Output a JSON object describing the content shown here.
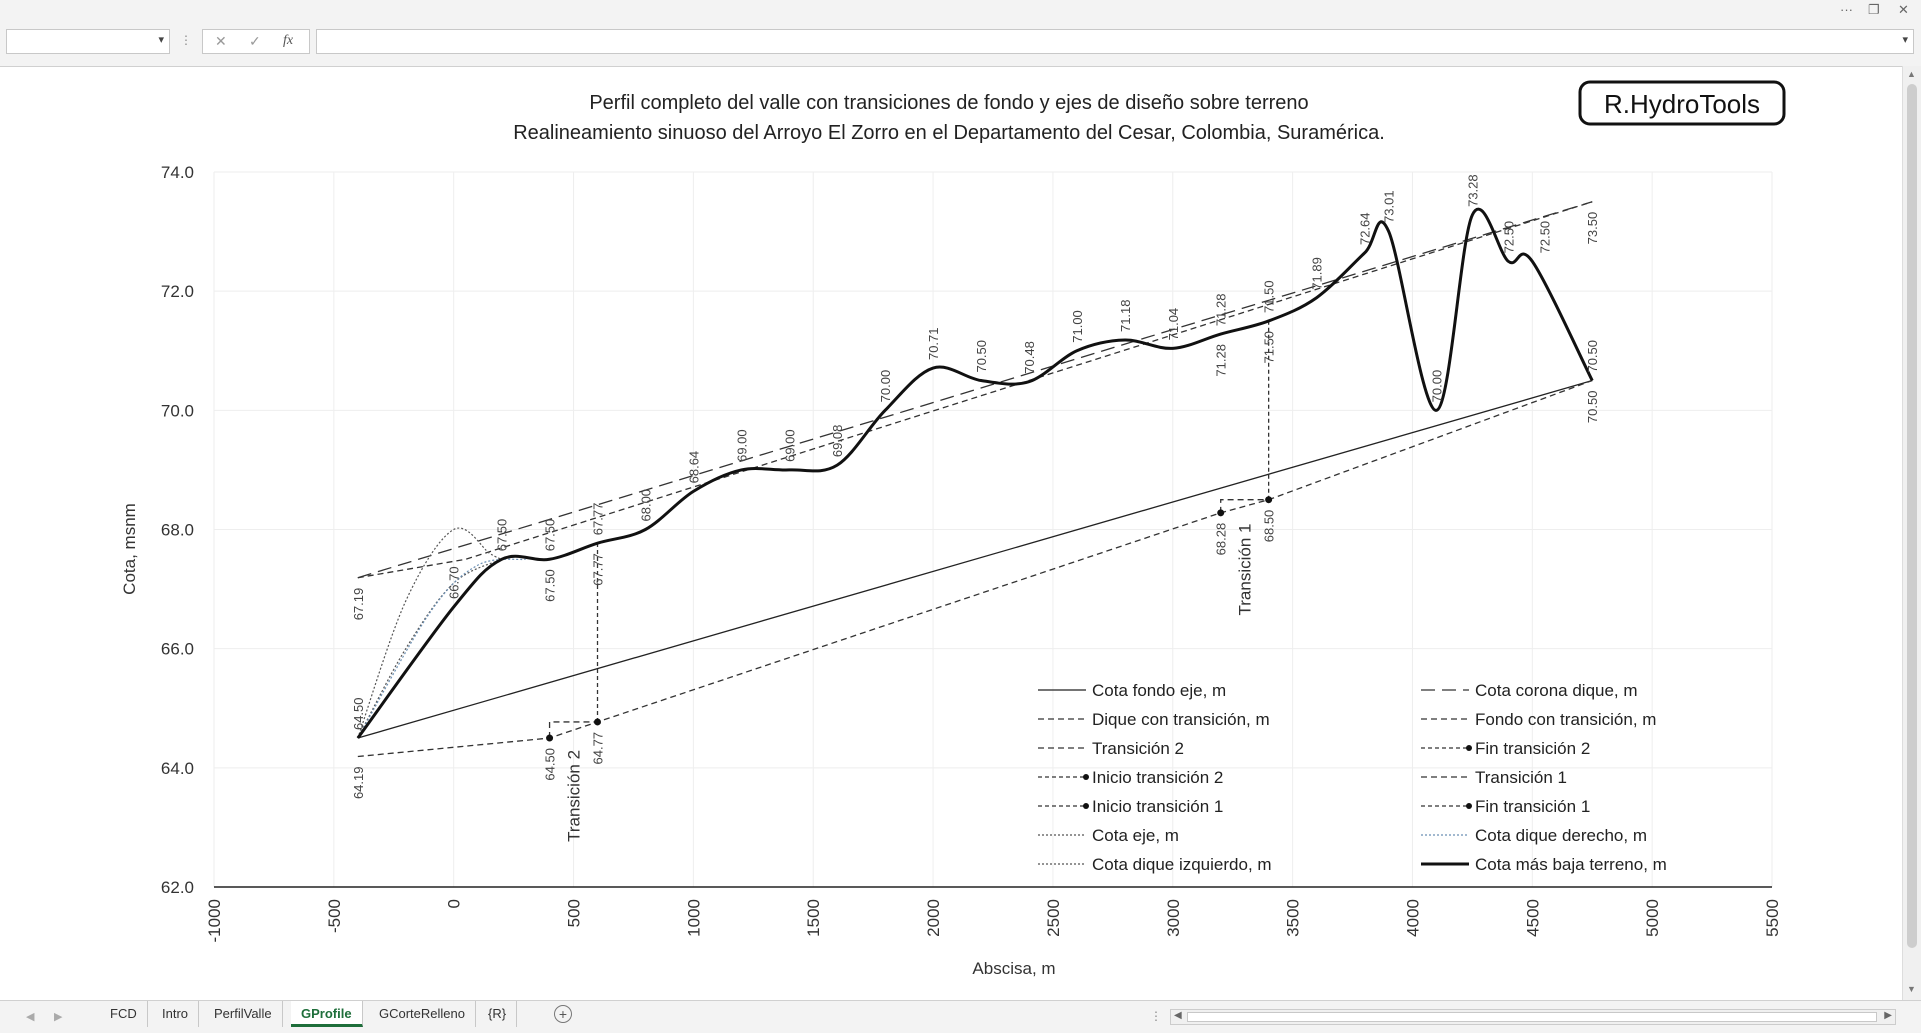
{
  "window": {
    "more_label": "···",
    "restore_label": "❐",
    "close_label": "✕"
  },
  "formula_bar": {
    "namebox_value": "",
    "cancel_icon": "✕",
    "enter_icon": "✓",
    "fx_label": "fx",
    "formula_value": ""
  },
  "sheet_tabs": [
    {
      "label": "FCD",
      "active": false
    },
    {
      "label": "Intro",
      "active": false
    },
    {
      "label": "PerfilValle",
      "active": false
    },
    {
      "label": "GProfile",
      "active": true
    },
    {
      "label": "GCorteRelleno",
      "active": false
    },
    {
      "label": "{R}",
      "active": false
    }
  ],
  "logo_text": "R.HydroTools",
  "chart_data": {
    "type": "line",
    "title": "Perfil completo del valle con transiciones de fondo y ejes de diseño sobre terreno",
    "subtitle": "Realineamiento sinuoso del Arroyo El Zorro en el Departamento del Cesar, Colombia, Suramérica.",
    "xlabel": "Abscisa, m",
    "ylabel": "Cota, msnm",
    "xlim": [
      -1000,
      5500
    ],
    "ylim": [
      62.0,
      74.0
    ],
    "x_ticks": [
      "-1000",
      "-500",
      "0",
      "500",
      "1000",
      "1500",
      "2000",
      "2500",
      "3000",
      "3500",
      "4000",
      "4500",
      "5000",
      "5500"
    ],
    "y_ticks": [
      "62.0",
      "64.0",
      "66.0",
      "68.0",
      "70.0",
      "72.0",
      "74.0"
    ],
    "grid": true,
    "legend_position": "bottom-right",
    "series": [
      {
        "name": "Cota fondo eje, m",
        "style": "solid-thin",
        "x": [
          -400,
          4750
        ],
        "y": [
          64.5,
          70.5
        ]
      },
      {
        "name": "Cota corona dique, m",
        "style": "long-dash",
        "x": [
          -400,
          4750
        ],
        "y": [
          67.19,
          73.5
        ]
      },
      {
        "name": "Dique con transición, m",
        "style": "dash",
        "x": [
          -400,
          50,
          4750
        ],
        "y": [
          67.19,
          67.5,
          73.5
        ]
      },
      {
        "name": "Fondo con transición, m",
        "style": "dash",
        "x": [
          -400,
          400,
          600,
          3200,
          3400,
          4750
        ],
        "y": [
          64.19,
          64.5,
          64.77,
          68.28,
          68.5,
          70.5
        ]
      },
      {
        "name": "Transición 2",
        "style": "dash",
        "x": [
          400,
          400,
          600
        ],
        "y": [
          64.5,
          64.77,
          64.77
        ]
      },
      {
        "name": "Fin transición 2",
        "style": "dash-marker",
        "x": [
          600,
          600
        ],
        "y": [
          64.77,
          67.77
        ]
      },
      {
        "name": "Inicio transición 2",
        "style": "dash-marker",
        "x": [
          400
        ],
        "y": [
          64.5
        ]
      },
      {
        "name": "Transición 1",
        "style": "dash",
        "x": [
          3200,
          3200,
          3400
        ],
        "y": [
          68.28,
          68.5,
          68.5
        ]
      },
      {
        "name": "Inicio transición 1",
        "style": "dash-marker",
        "x": [
          3200
        ],
        "y": [
          68.28
        ]
      },
      {
        "name": "Fin transición 1",
        "style": "dash-marker",
        "x": [
          3400,
          3400
        ],
        "y": [
          68.5,
          71.5
        ]
      },
      {
        "name": "Cota eje, m",
        "style": "dot",
        "x": [
          -400,
          -200,
          0,
          200
        ],
        "y": [
          64.5,
          66.0,
          67.1,
          67.5
        ]
      },
      {
        "name": "Cota dique derecho, m",
        "style": "dot-blue",
        "x": [
          -400,
          -100,
          100,
          300
        ],
        "y": [
          64.5,
          66.6,
          67.4,
          67.5
        ]
      },
      {
        "name": "Cota dique izquierdo, m",
        "style": "dot",
        "x": [
          -400,
          -200,
          0,
          150,
          200
        ],
        "y": [
          64.5,
          66.8,
          68.0,
          67.6,
          67.5
        ]
      },
      {
        "name": "Cota más baja terreno, m",
        "style": "solid-thick",
        "x": [
          -400,
          0,
          200,
          400,
          600,
          800,
          1000,
          1200,
          1400,
          1600,
          1800,
          2000,
          2200,
          2400,
          2600,
          2800,
          3000,
          3200,
          3400,
          3600,
          3800,
          3900,
          4100,
          4250,
          4400,
          4500,
          4750
        ],
        "y": [
          64.5,
          66.7,
          67.5,
          67.5,
          67.77,
          68.0,
          68.64,
          69.0,
          69.0,
          69.08,
          70.0,
          70.71,
          70.5,
          70.48,
          71.0,
          71.18,
          71.04,
          71.28,
          71.5,
          71.89,
          72.64,
          73.01,
          70.0,
          73.28,
          72.5,
          72.5,
          70.5
        ]
      }
    ],
    "data_labels": [
      {
        "x": -400,
        "y": 67.19,
        "text": "67.19",
        "pos": "below"
      },
      {
        "x": -400,
        "y": 64.5,
        "text": "64.50",
        "pos": "above"
      },
      {
        "x": -400,
        "y": 64.19,
        "text": "64.19",
        "pos": "below"
      },
      {
        "x": 0,
        "y": 66.7,
        "text": "66.70",
        "pos": "above"
      },
      {
        "x": 200,
        "y": 67.5,
        "text": "67.50",
        "pos": "above"
      },
      {
        "x": 400,
        "y": 67.5,
        "text": "67.50",
        "pos": "above"
      },
      {
        "x": 400,
        "y": 67.5,
        "text": "67.50",
        "pos": "below"
      },
      {
        "x": 600,
        "y": 67.77,
        "text": "67.77",
        "pos": "above"
      },
      {
        "x": 600,
        "y": 67.77,
        "text": "67.77",
        "pos": "below"
      },
      {
        "x": 800,
        "y": 68.0,
        "text": "68.00",
        "pos": "above"
      },
      {
        "x": 1000,
        "y": 68.64,
        "text": "68.64",
        "pos": "above"
      },
      {
        "x": 1200,
        "y": 69.0,
        "text": "69.00",
        "pos": "above"
      },
      {
        "x": 1400,
        "y": 69.0,
        "text": "69.00",
        "pos": "above"
      },
      {
        "x": 1600,
        "y": 69.08,
        "text": "69.08",
        "pos": "above"
      },
      {
        "x": 1800,
        "y": 70.0,
        "text": "70.00",
        "pos": "above"
      },
      {
        "x": 2000,
        "y": 70.71,
        "text": "70.71",
        "pos": "above"
      },
      {
        "x": 2200,
        "y": 70.5,
        "text": "70.50",
        "pos": "above"
      },
      {
        "x": 2400,
        "y": 70.48,
        "text": "70.48",
        "pos": "above"
      },
      {
        "x": 2600,
        "y": 71.0,
        "text": "71.00",
        "pos": "above"
      },
      {
        "x": 2800,
        "y": 71.18,
        "text": "71.18",
        "pos": "above"
      },
      {
        "x": 3000,
        "y": 71.04,
        "text": "71.04",
        "pos": "above"
      },
      {
        "x": 3200,
        "y": 71.28,
        "text": "71.28",
        "pos": "above"
      },
      {
        "x": 3200,
        "y": 71.28,
        "text": "71.28",
        "pos": "below"
      },
      {
        "x": 3400,
        "y": 71.5,
        "text": "71.50",
        "pos": "above"
      },
      {
        "x": 3400,
        "y": 71.5,
        "text": "71.50",
        "pos": "below"
      },
      {
        "x": 3600,
        "y": 71.89,
        "text": "71.89",
        "pos": "above"
      },
      {
        "x": 3800,
        "y": 72.64,
        "text": "72.64",
        "pos": "above"
      },
      {
        "x": 3900,
        "y": 73.01,
        "text": "73.01",
        "pos": "above"
      },
      {
        "x": 4100,
        "y": 70.0,
        "text": "70.00",
        "pos": "above"
      },
      {
        "x": 4250,
        "y": 73.28,
        "text": "73.28",
        "pos": "above"
      },
      {
        "x": 4400,
        "y": 72.5,
        "text": "72.50",
        "pos": "above"
      },
      {
        "x": 4550,
        "y": 72.5,
        "text": "72.50",
        "pos": "above"
      },
      {
        "x": 4750,
        "y": 73.5,
        "text": "73.50",
        "pos": "below"
      },
      {
        "x": 4750,
        "y": 70.5,
        "text": "70.50",
        "pos": "above"
      },
      {
        "x": 4750,
        "y": 70.5,
        "text": "70.50",
        "pos": "below"
      },
      {
        "x": 400,
        "y": 64.5,
        "text": "64.50",
        "pos": "below"
      },
      {
        "x": 600,
        "y": 64.77,
        "text": "64.77",
        "pos": "below"
      },
      {
        "x": 3200,
        "y": 68.28,
        "text": "68.28",
        "pos": "below"
      },
      {
        "x": 3400,
        "y": 68.5,
        "text": "68.50",
        "pos": "below"
      }
    ],
    "annotations": [
      {
        "x": 500,
        "y": 64.3,
        "text": "Transición 2"
      },
      {
        "x": 3300,
        "y": 68.1,
        "text": "Transición 1"
      }
    ]
  }
}
